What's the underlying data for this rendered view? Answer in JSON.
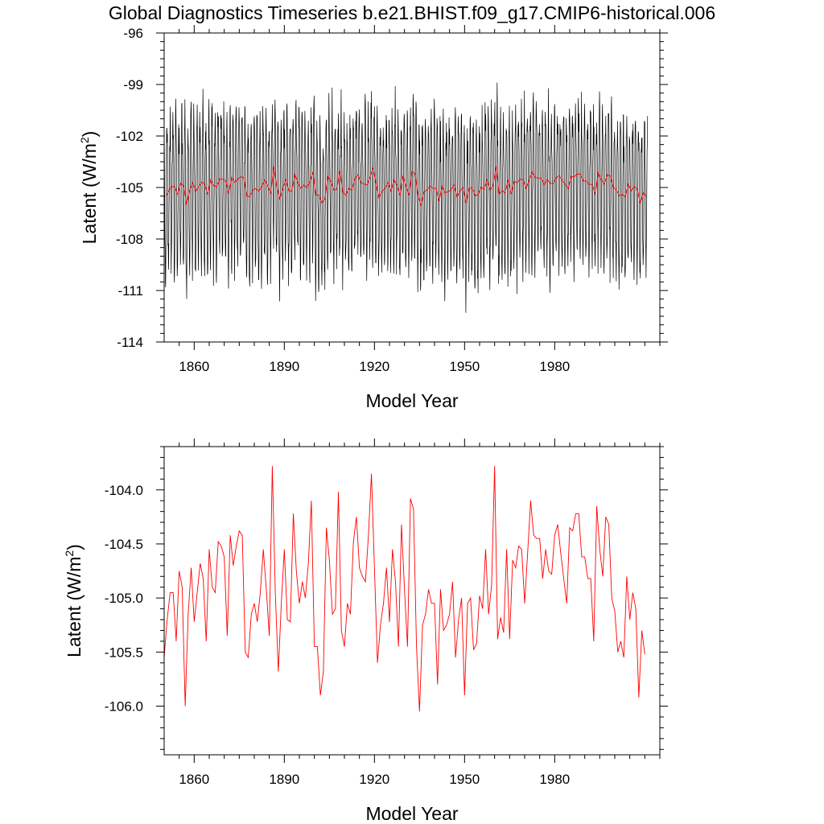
{
  "title": "Global Diagnostics Timeseries b.e21.BHIST.f09_g17.CMIP6-historical.006",
  "colors": {
    "monthly": "#000000",
    "annual": "#ff0000",
    "frame": "#000000"
  },
  "chart_data": [
    {
      "type": "line",
      "xlabel": "Model Year",
      "ylabel": "Latent (W/m2)",
      "xlim": [
        1850,
        2015
      ],
      "ylim": [
        -114,
        -96
      ],
      "xticks": [
        1860,
        1890,
        1920,
        1950,
        1980
      ],
      "xtick_labels": [
        "1860",
        "1890",
        "1920",
        "1950",
        "1980"
      ],
      "yticks": [
        -114,
        -111,
        -108,
        -105,
        -102,
        -99,
        -96
      ],
      "ytick_labels": [
        "-114",
        "-111",
        "-108",
        "-105",
        "-102",
        "-99",
        "-96"
      ],
      "series": [
        {
          "kind": "monthly",
          "color": "#000000",
          "x_start": 1850,
          "x_step": 0.083333,
          "mean": -105.0,
          "amplitude": 5.0,
          "values": []
        },
        {
          "kind": "annual",
          "color": "#ff0000",
          "x_start": 1850.5,
          "x_step": 1,
          "values": []
        }
      ]
    },
    {
      "type": "line",
      "xlabel": "Model Year",
      "ylabel": "Latent (W/m2)",
      "xlim": [
        1850,
        2015
      ],
      "ylim": [
        -106.45,
        -103.6
      ],
      "xticks": [
        1860,
        1890,
        1920,
        1950,
        1980
      ],
      "xtick_labels": [
        "1860",
        "1890",
        "1920",
        "1950",
        "1980"
      ],
      "yticks": [
        -106.0,
        -105.5,
        -105.0,
        -104.5,
        -104.0
      ],
      "ytick_labels": [
        "-106.0",
        "-105.5",
        "-105.0",
        "-104.5",
        "-104.0"
      ],
      "series": [
        {
          "kind": "annual",
          "color": "#ff0000",
          "x_start": 1850,
          "x_step": 1,
          "values": [
            -105.55,
            -105.2,
            -104.95,
            -104.95,
            -105.4,
            -104.75,
            -104.9,
            -106.0,
            -105.15,
            -104.72,
            -105.22,
            -104.95,
            -104.68,
            -104.82,
            -105.4,
            -104.55,
            -104.9,
            -104.95,
            -104.48,
            -104.52,
            -104.62,
            -105.35,
            -104.42,
            -104.7,
            -104.52,
            -104.38,
            -104.42,
            -105.5,
            -105.55,
            -105.15,
            -105.05,
            -105.22,
            -104.95,
            -104.55,
            -104.92,
            -105.35,
            -103.78,
            -104.95,
            -105.68,
            -105.05,
            -104.55,
            -105.2,
            -105.22,
            -104.22,
            -104.75,
            -105.05,
            -104.85,
            -105.0,
            -104.68,
            -104.1,
            -105.45,
            -105.45,
            -105.9,
            -105.68,
            -104.35,
            -104.65,
            -105.15,
            -105.1,
            -104.02,
            -105.3,
            -105.45,
            -105.05,
            -105.15,
            -104.48,
            -104.25,
            -104.72,
            -104.8,
            -104.85,
            -104.42,
            -103.85,
            -104.72,
            -105.6,
            -105.25,
            -105.05,
            -104.72,
            -105.22,
            -104.55,
            -104.85,
            -105.45,
            -104.32,
            -104.92,
            -105.45,
            -104.08,
            -104.18,
            -105.45,
            -106.05,
            -105.25,
            -105.15,
            -104.92,
            -105.05,
            -105.05,
            -105.8,
            -104.92,
            -105.3,
            -105.25,
            -105.15,
            -104.85,
            -105.55,
            -105.2,
            -105.0,
            -105.9,
            -105.05,
            -105.0,
            -105.48,
            -105.42,
            -104.98,
            -105.1,
            -104.55,
            -105.15,
            -104.88,
            -103.78,
            -105.38,
            -105.18,
            -105.32,
            -104.55,
            -105.38,
            -104.65,
            -104.72,
            -104.52,
            -104.55,
            -105.05,
            -104.58,
            -104.1,
            -104.42,
            -104.45,
            -104.45,
            -104.82,
            -104.55,
            -104.75,
            -104.78,
            -104.42,
            -104.32,
            -104.58,
            -104.82,
            -105.05,
            -104.35,
            -104.38,
            -104.22,
            -104.22,
            -104.62,
            -104.62,
            -104.82,
            -104.82,
            -105.4,
            -104.15,
            -104.55,
            -104.8,
            -104.25,
            -104.32,
            -105.0,
            -105.12,
            -105.5,
            -105.4,
            -105.55,
            -104.8,
            -105.2,
            -104.95,
            -105.1,
            -105.92,
            -105.3,
            -105.52
          ]
        }
      ]
    }
  ]
}
